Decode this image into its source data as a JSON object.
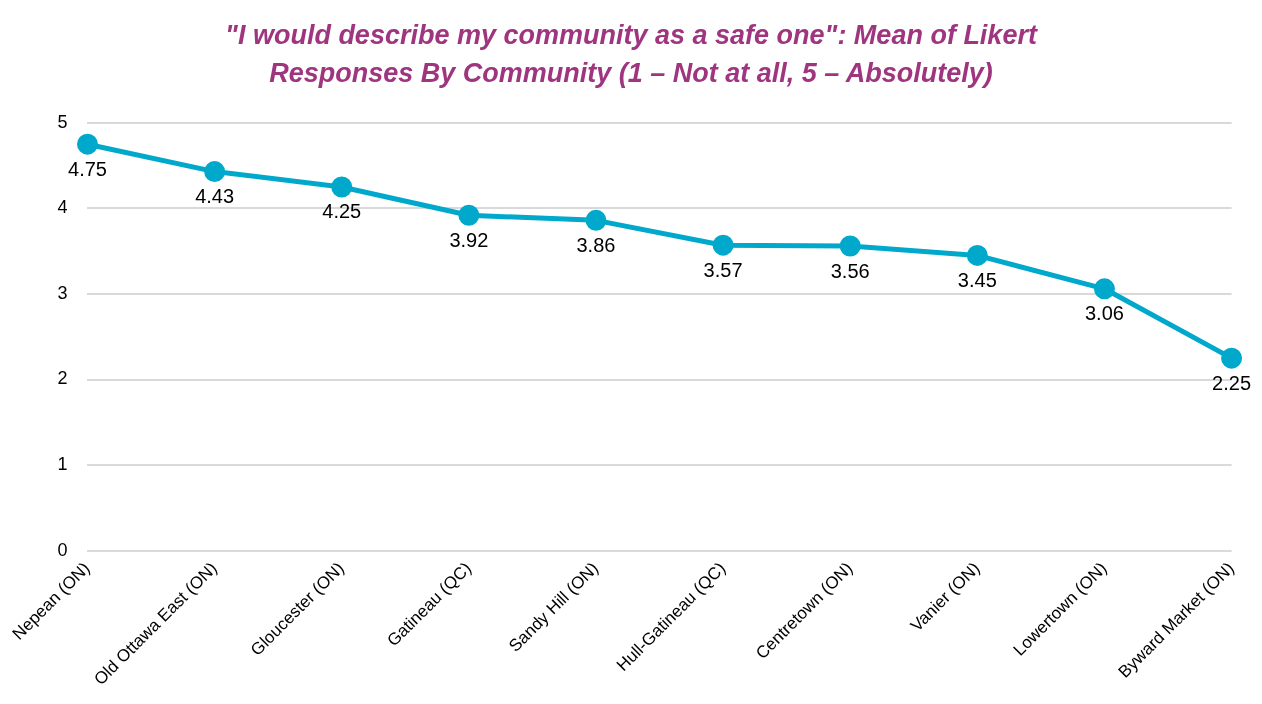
{
  "chart_data": {
    "type": "line",
    "title": "\"I would describe my community as a safe one\": Mean of Likert Responses By Community (1 – Not at all, 5 – Absolutely)",
    "categories": [
      "Nepean (ON)",
      "Old Ottawa East (ON)",
      "Gloucester (ON)",
      "Gatineau (QC)",
      "Sandy Hill (ON)",
      "Hull-Gatineau (QC)",
      "Centretown (ON)",
      "Vanier (ON)",
      "Lowertown (ON)",
      "Byward Market (ON)"
    ],
    "series": [
      {
        "color": "#00a9cc",
        "values": [
          4.75,
          4.43,
          4.25,
          3.92,
          3.86,
          3.57,
          3.56,
          3.45,
          3.06,
          2.25
        ]
      }
    ],
    "ylim": [
      0,
      5
    ],
    "yticks": [
      0,
      1,
      2,
      3,
      4,
      5
    ],
    "grid": "y",
    "marker": "circle",
    "line_style": "solid",
    "data_labels": true,
    "legend": false
  }
}
